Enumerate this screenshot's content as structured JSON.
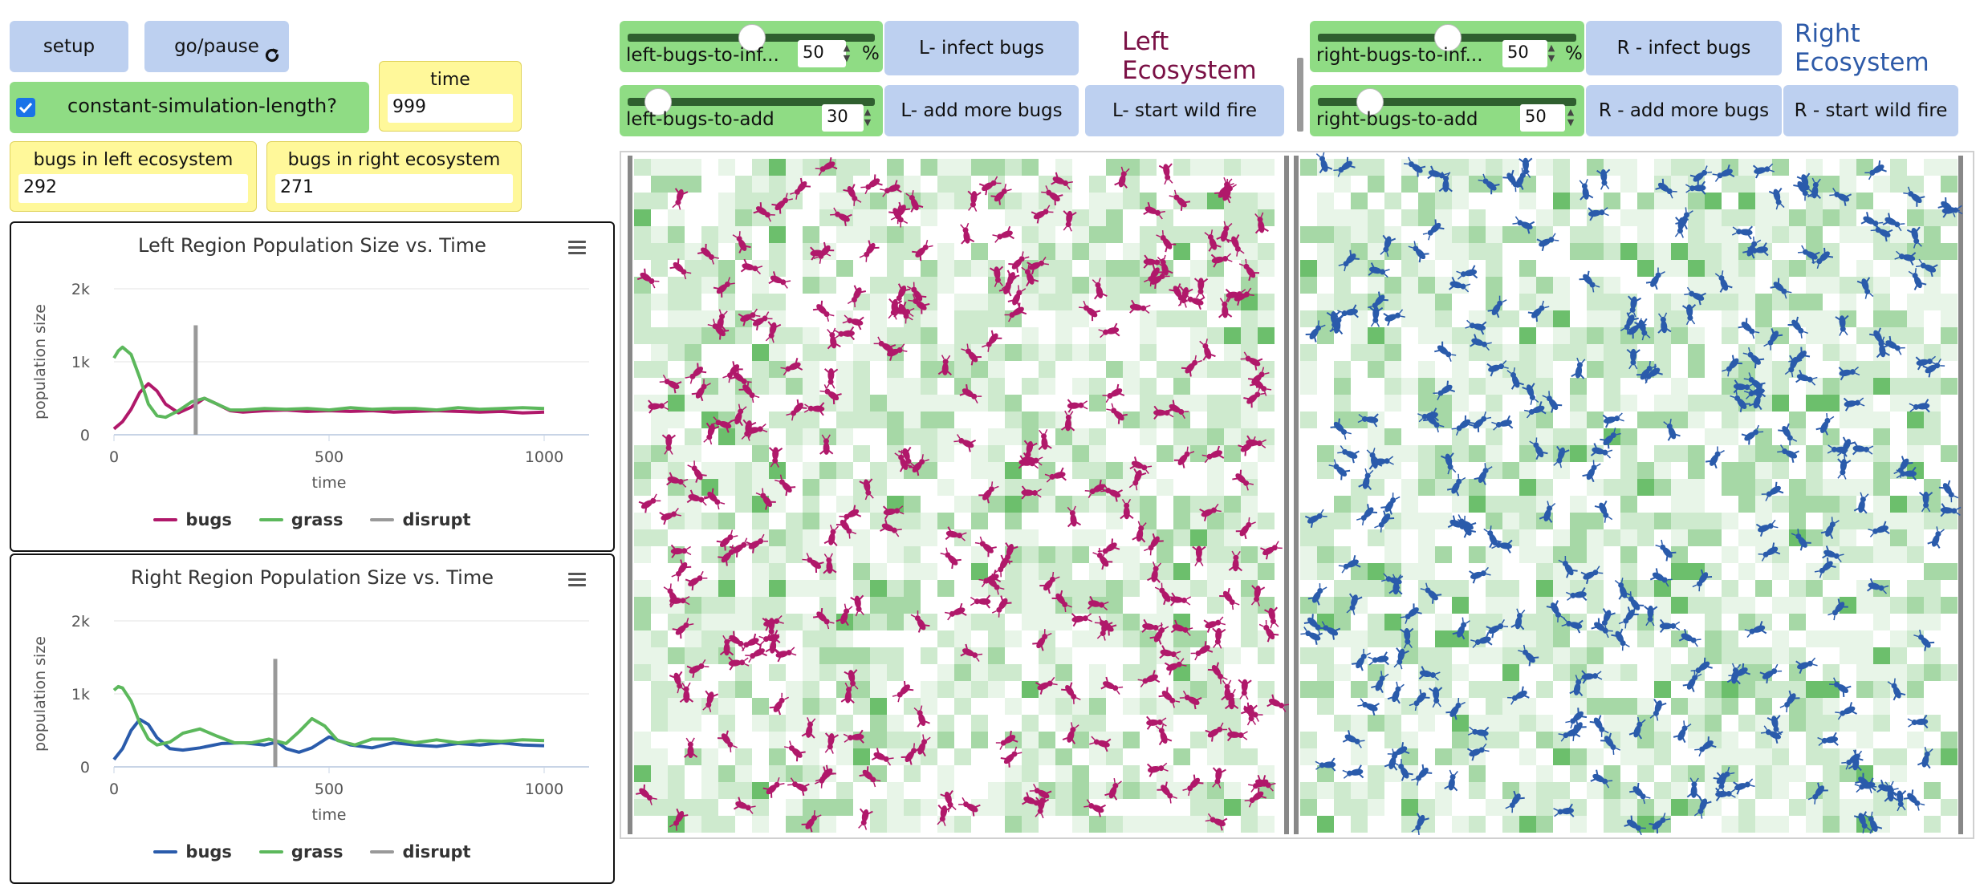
{
  "controls": {
    "setup_label": "setup",
    "go_label": "go/pause",
    "constant_label": "constant-simulation-length?",
    "constant_checked": true
  },
  "monitors": {
    "time": {
      "label": "time",
      "value": "999"
    },
    "bugs_left": {
      "label": "bugs in left ecosystem",
      "value": "292"
    },
    "bugs_right": {
      "label": "bugs in right ecosystem",
      "value": "271"
    }
  },
  "left_controls": {
    "infect_slider_label": "left-bugs-to-inf...",
    "infect_value": "50",
    "infect_unit": "%",
    "infect_level": 0.5,
    "add_slider_label": "left-bugs-to-add",
    "add_value": "30",
    "add_level": 0.12,
    "infect_button": "L- infect bugs",
    "add_button": "L- add more bugs",
    "fire_button": "L- start wild fire",
    "title_line1": "Left",
    "title_line2": "Ecosystem",
    "title_color": "#7a1045"
  },
  "right_controls": {
    "infect_slider_label": "right-bugs-to-inf...",
    "infect_value": "50",
    "infect_unit": "%",
    "infect_level": 0.5,
    "add_slider_label": "right-bugs-to-add",
    "add_value": "50",
    "add_level": 0.2,
    "infect_button": "R - infect bugs",
    "add_button": "R - add more bugs",
    "fire_button": "R - start wild fire",
    "title_line1": "Right",
    "title_line2": "Ecosystem",
    "title_color": "#2d5aa8"
  },
  "world": {
    "left_bug_color": "#b0186a",
    "right_bug_color": "#2a5bab",
    "grass_color": "#5cb85c",
    "left_bug_count": 292,
    "right_bug_count": 271
  },
  "chart_data": [
    {
      "type": "line",
      "title": "Left Region Population Size vs. Time",
      "xlabel": "time",
      "ylabel": "population size",
      "xlim": [
        0,
        1000
      ],
      "ylim": [
        0,
        2000
      ],
      "xticks": [
        "0",
        "500",
        "1000"
      ],
      "yticks": [
        "0",
        "1k",
        "2k"
      ],
      "legend_position": "bottom",
      "series": [
        {
          "name": "bugs",
          "color": "#b0186a",
          "x": [
            0,
            20,
            40,
            60,
            80,
            100,
            120,
            150,
            180,
            210,
            240,
            270,
            300,
            350,
            400,
            450,
            500,
            550,
            600,
            650,
            700,
            750,
            800,
            850,
            900,
            950,
            1000
          ],
          "y": [
            80,
            180,
            350,
            580,
            700,
            600,
            420,
            300,
            380,
            500,
            420,
            330,
            310,
            330,
            340,
            320,
            330,
            320,
            330,
            310,
            320,
            330,
            320,
            310,
            320,
            300,
            310
          ]
        },
        {
          "name": "grass",
          "color": "#5cb85c",
          "x": [
            0,
            10,
            20,
            40,
            60,
            80,
            100,
            120,
            150,
            180,
            210,
            240,
            270,
            300,
            350,
            400,
            450,
            500,
            550,
            600,
            650,
            700,
            750,
            800,
            850,
            900,
            950,
            1000
          ],
          "y": [
            1050,
            1150,
            1200,
            1100,
            780,
            420,
            260,
            240,
            330,
            450,
            500,
            420,
            340,
            340,
            360,
            350,
            360,
            340,
            370,
            350,
            360,
            360,
            340,
            370,
            350,
            360,
            370,
            360
          ]
        },
        {
          "name": "disrupt",
          "color": "#999999",
          "x": [
            190,
            190
          ],
          "y": [
            0,
            1500
          ]
        }
      ]
    },
    {
      "type": "line",
      "title": "Right Region Population Size vs. Time",
      "xlabel": "time",
      "ylabel": "population size",
      "xlim": [
        0,
        1000
      ],
      "ylim": [
        0,
        2000
      ],
      "xticks": [
        "0",
        "500",
        "1000"
      ],
      "yticks": [
        "0",
        "1k",
        "2k"
      ],
      "legend_position": "bottom",
      "series": [
        {
          "name": "bugs",
          "color": "#2a5bab",
          "x": [
            0,
            20,
            40,
            60,
            80,
            100,
            130,
            160,
            200,
            250,
            300,
            350,
            380,
            400,
            430,
            460,
            500,
            550,
            600,
            650,
            700,
            750,
            800,
            850,
            900,
            950,
            1000
          ],
          "y": [
            100,
            250,
            500,
            650,
            580,
            400,
            250,
            230,
            260,
            320,
            330,
            300,
            340,
            250,
            200,
            260,
            410,
            300,
            260,
            330,
            300,
            280,
            320,
            300,
            330,
            300,
            290
          ]
        },
        {
          "name": "grass",
          "color": "#5cb85c",
          "x": [
            0,
            10,
            20,
            40,
            60,
            80,
            100,
            130,
            160,
            200,
            240,
            280,
            320,
            360,
            400,
            430,
            460,
            490,
            520,
            560,
            600,
            650,
            700,
            750,
            800,
            850,
            900,
            950,
            1000
          ],
          "y": [
            1050,
            1100,
            1080,
            900,
            600,
            380,
            300,
            340,
            460,
            520,
            420,
            330,
            330,
            380,
            320,
            480,
            660,
            560,
            360,
            300,
            380,
            380,
            330,
            370,
            330,
            360,
            350,
            370,
            360
          ]
        },
        {
          "name": "disrupt",
          "color": "#999999",
          "x": [
            375,
            375
          ],
          "y": [
            0,
            1480
          ]
        }
      ]
    }
  ]
}
